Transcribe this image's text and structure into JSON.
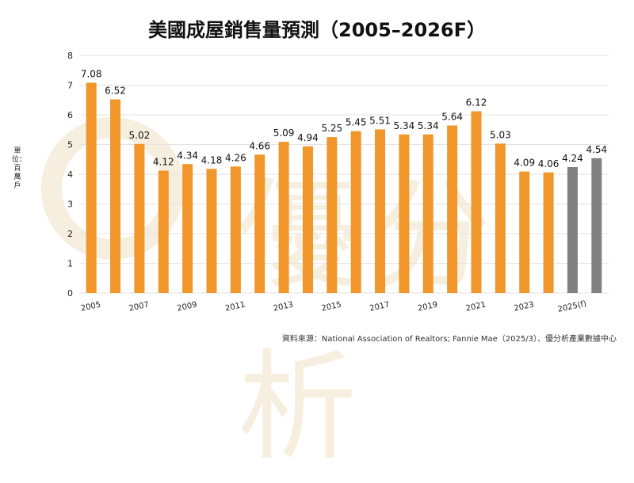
{
  "title": "美國成屋銷售量預測（2005–2026F）",
  "unit_label": "單位：百萬戶",
  "source": "資料來源：National Association of Realtors; Fannie Mae（2025/3）、優分析產業數據中心",
  "watermark": "優分析",
  "colors": {
    "actual": "#F0962A",
    "forecast": "#808080",
    "grid": "#e3e3e3",
    "text": "#222222"
  },
  "chart_data": {
    "type": "bar",
    "title": "美國成屋銷售量預測（2005–2026F）",
    "ylabel": "單位：百萬戶",
    "xlabel": "",
    "ylim": [
      0,
      8
    ],
    "yticks": [
      "0",
      "1",
      "2",
      "3",
      "4",
      "5",
      "6",
      "7",
      "8"
    ],
    "grid": true,
    "categories": [
      "2005",
      "2006",
      "2007",
      "2008",
      "2009",
      "2010",
      "2011",
      "2012",
      "2013",
      "2014",
      "2015",
      "2016",
      "2017",
      "2018",
      "2019",
      "2020",
      "2021",
      "2022",
      "2023",
      "2024",
      "2025(f)",
      "2026(f)"
    ],
    "xtick_labels": [
      "2005",
      "",
      "2007",
      "",
      "2009",
      "",
      "2011",
      "",
      "2013",
      "",
      "2015",
      "",
      "2017",
      "",
      "2019",
      "",
      "2021",
      "",
      "2023",
      "",
      "2025(f)",
      ""
    ],
    "values": [
      7.08,
      6.52,
      5.02,
      4.12,
      4.34,
      4.18,
      4.26,
      4.66,
      5.09,
      4.94,
      5.25,
      5.45,
      5.51,
      5.34,
      5.34,
      5.64,
      6.12,
      5.03,
      4.09,
      4.06,
      4.24,
      4.54
    ],
    "value_labels": [
      "7.08",
      "6.52",
      "5.02",
      "4.12",
      "4.34",
      "4.18",
      "4.26",
      "4.66",
      "5.09",
      "4.94",
      "5.25",
      "5.45",
      "5.51",
      "5.34",
      "5.34",
      "5.64",
      "6.12",
      "5.03",
      "4.09",
      "4.06",
      "4.24",
      "4.54"
    ],
    "forecast": [
      false,
      false,
      false,
      false,
      false,
      false,
      false,
      false,
      false,
      false,
      false,
      false,
      false,
      false,
      false,
      false,
      false,
      false,
      false,
      false,
      true,
      true
    ]
  }
}
